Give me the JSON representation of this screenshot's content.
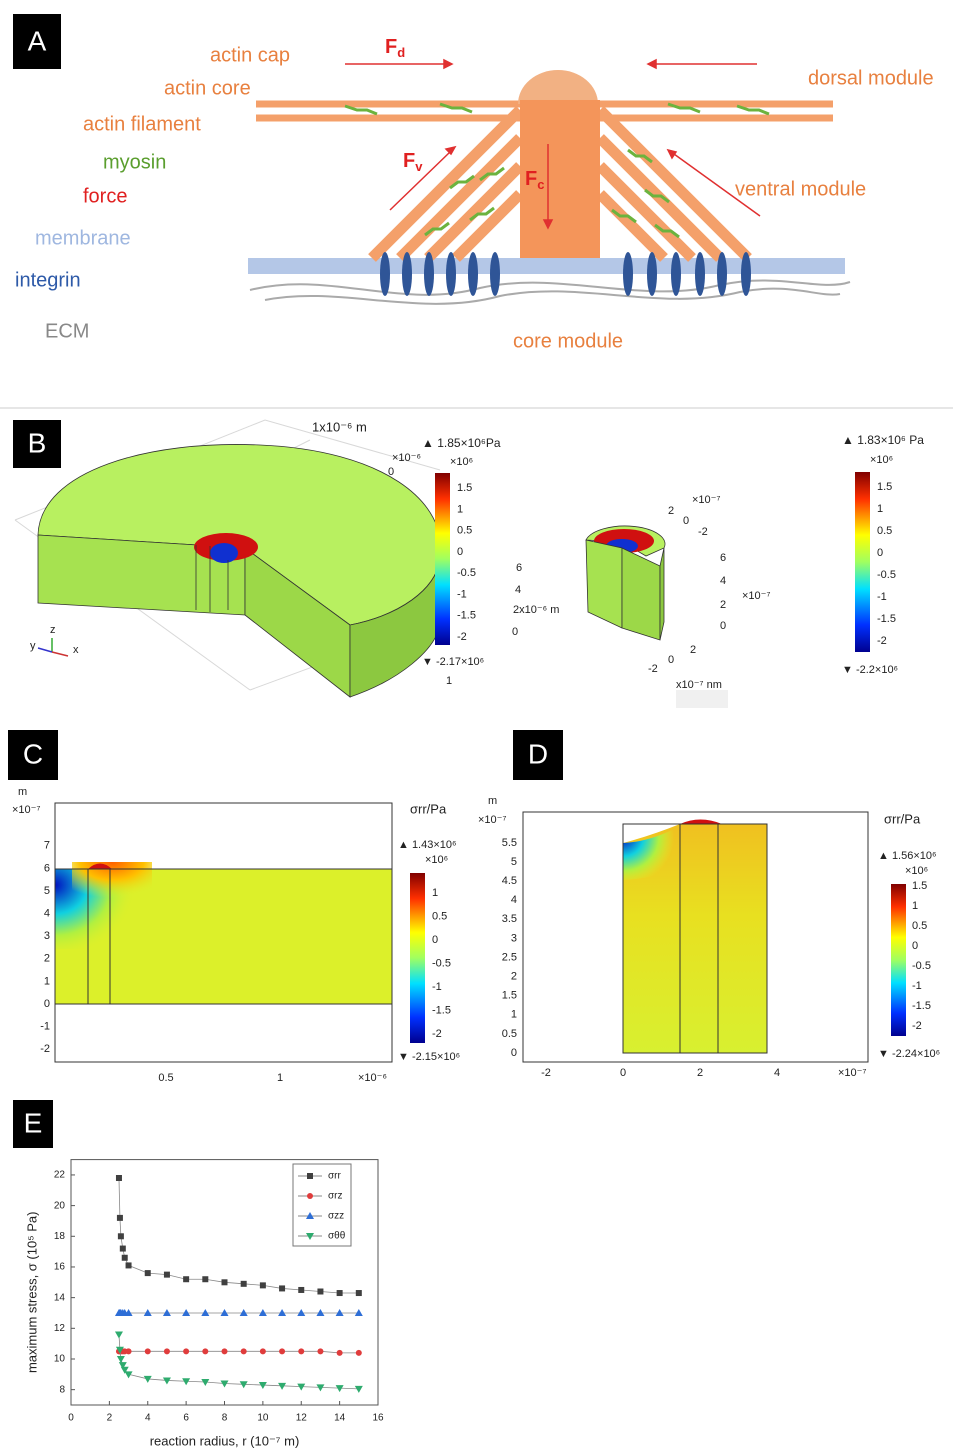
{
  "panel_a": {
    "label": "A",
    "legend": [
      "actin cap",
      "actin core",
      "actin filament",
      "myosin",
      "force",
      "membrane",
      "integrin",
      "ECM"
    ],
    "forces": [
      {
        "symbol": "F",
        "subscript": "d"
      },
      {
        "symbol": "F",
        "subscript": "v"
      },
      {
        "symbol": "F",
        "subscript": "c"
      }
    ],
    "modules": [
      "dorsal module",
      "ventral module",
      "core module"
    ]
  },
  "panel_b": {
    "label": "B",
    "texts": [
      "1x10⁻⁶ m",
      "×10⁻⁶",
      "0",
      "6",
      "4",
      "2x10⁻⁶ m",
      "0",
      "1",
      "×10⁻⁷",
      "2",
      "0",
      "-2",
      "6",
      "4",
      "2",
      "0",
      "×10⁻⁷",
      "-2",
      "0",
      "2",
      "x10⁻⁷ nm",
      "y",
      "z",
      "x"
    ],
    "colorbars": [
      {
        "max": "▲ 1.85×10⁶Pa",
        "scale": "×10⁶",
        "ticks": [
          1.5,
          1,
          0.5,
          0,
          -0.5,
          -1,
          -1.5,
          -2
        ],
        "min": "▼ -2.17×10⁶"
      },
      {
        "max": "▲ 1.83×10⁶ Pa",
        "scale": "×10⁶",
        "ticks": [
          1.5,
          1,
          0.5,
          0,
          -0.5,
          -1,
          -1.5,
          -2
        ],
        "min": "▼ -2.2×10⁶"
      }
    ]
  },
  "panel_c": {
    "label": "C",
    "y_unit": "m",
    "y_scale": "×10⁻⁷",
    "yticks": [
      7,
      6,
      5,
      4,
      3,
      2,
      1,
      0,
      -1,
      -2
    ],
    "xticks": [
      0.5,
      1
    ],
    "x_scale": "×10⁻⁶",
    "colorbar": {
      "title": "σrr/Pa",
      "max": "▲ 1.43×10⁶",
      "scale": "×10⁶",
      "ticks": [
        1,
        0.5,
        0,
        -0.5,
        -1,
        -1.5,
        -2
      ],
      "min": "▼ -2.15×10⁶"
    }
  },
  "panel_d": {
    "label": "D",
    "y_unit": "m",
    "y_scale": "×10⁻⁷",
    "yticks": [
      5.5,
      5,
      4.5,
      4,
      3.5,
      3,
      2.5,
      2,
      1.5,
      1,
      0.5,
      0
    ],
    "xticks": [
      -2,
      0,
      2,
      4
    ],
    "x_scale": "×10⁻⁷",
    "colorbar": {
      "title": "σrr/Pa",
      "max": "▲ 1.56×10⁶",
      "scale": "×10⁶",
      "ticks": [
        1.5,
        1,
        0.5,
        0,
        -0.5,
        -1,
        -1.5,
        -2
      ],
      "min": "▼ -2.24×10⁶"
    }
  },
  "chart_data": {
    "type": "line",
    "label": "E",
    "x_label": "reaction radius, r  (10⁻⁷ m)",
    "y_label": "maximum stress, σ  (10⁵ Pa)",
    "x": [
      2.5,
      2.55,
      2.6,
      2.7,
      2.8,
      3,
      4,
      5,
      6,
      7,
      8,
      9,
      10,
      11,
      12,
      13,
      14,
      15
    ],
    "xlim": [
      0,
      16
    ],
    "xticks": [
      0,
      2,
      4,
      6,
      8,
      10,
      12,
      14,
      16
    ],
    "ylim": [
      7,
      23
    ],
    "yticks": [
      8,
      10,
      12,
      14,
      16,
      18,
      20,
      22
    ],
    "series": [
      {
        "name": "σrr",
        "color": "#404040",
        "marker": "square",
        "values": [
          21.8,
          19.2,
          18,
          17.2,
          16.6,
          16.1,
          15.6,
          15.5,
          15.2,
          15.2,
          15.0,
          14.9,
          14.8,
          14.6,
          14.5,
          14.4,
          14.3,
          14.3
        ]
      },
      {
        "name": "σrz",
        "color": "#e03c3c",
        "marker": "circle",
        "values": [
          10.5,
          10.5,
          10.5,
          10.5,
          10.5,
          10.5,
          10.5,
          10.5,
          10.5,
          10.5,
          10.5,
          10.5,
          10.5,
          10.5,
          10.5,
          10.5,
          10.4,
          10.4
        ]
      },
      {
        "name": "σzz",
        "color": "#2e6ed6",
        "marker": "triangle-up",
        "values": [
          13,
          13,
          13,
          13,
          13,
          13,
          13,
          13,
          13,
          13,
          13,
          13,
          13,
          13,
          13,
          13,
          13,
          13
        ]
      },
      {
        "name": "σθθ",
        "color": "#2eab6e",
        "marker": "triangle-down",
        "values": [
          11.6,
          10.6,
          10.0,
          9.6,
          9.3,
          9.0,
          8.7,
          8.6,
          8.55,
          8.5,
          8.4,
          8.35,
          8.3,
          8.25,
          8.2,
          8.15,
          8.1,
          8.05
        ]
      }
    ]
  }
}
